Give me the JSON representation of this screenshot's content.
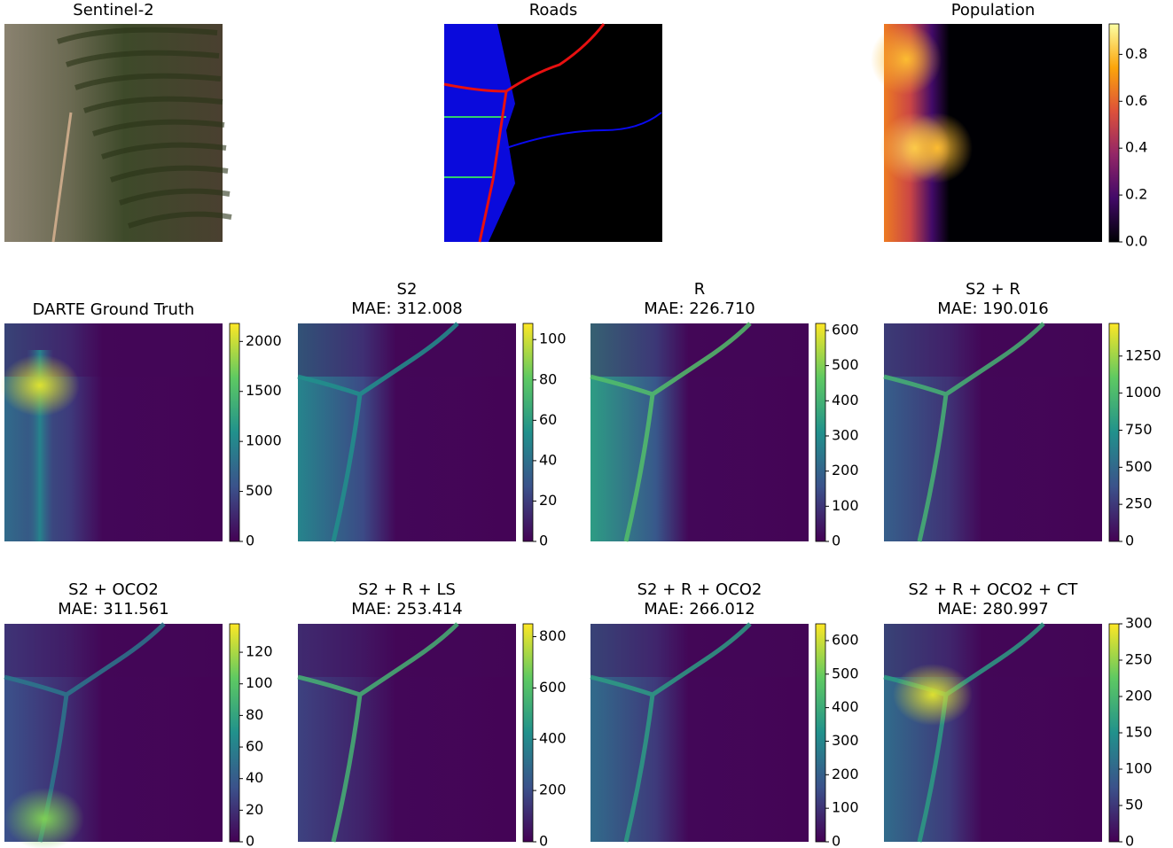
{
  "chart_data": [
    {
      "type": "image",
      "title": "Sentinel-2"
    },
    {
      "type": "image",
      "title": "Roads"
    },
    {
      "type": "image",
      "title": "Population",
      "colormap": "inferno",
      "clim": [
        0,
        0.93
      ],
      "cticks": [
        {
          "value": 0,
          "label": "0.0"
        },
        0.2,
        0.4,
        0.6,
        0.8
      ]
    },
    {
      "type": "image",
      "title": "DARTE Ground Truth",
      "colormap": "viridis",
      "clim": [
        0,
        2180
      ],
      "cticks": [
        0,
        500,
        1000,
        1500,
        2000
      ]
    },
    {
      "type": "image",
      "title": "S2",
      "subtitle": "MAE: 312.008",
      "colormap": "viridis",
      "clim": [
        0,
        108
      ],
      "cticks": [
        0,
        20,
        40,
        60,
        80,
        100
      ]
    },
    {
      "type": "image",
      "title": "R",
      "subtitle": "MAE: 226.710",
      "colormap": "viridis",
      "clim": [
        0,
        620
      ],
      "cticks": [
        0,
        100,
        200,
        300,
        400,
        500,
        600
      ]
    },
    {
      "type": "image",
      "title": "S2 + R",
      "subtitle": "MAE: 190.016",
      "colormap": "viridis",
      "clim": [
        0,
        1470
      ],
      "cticks": [
        0,
        250,
        500,
        750,
        1000,
        1250
      ]
    },
    {
      "type": "image",
      "title": "S2 + OCO2",
      "subtitle": "MAE: 311.561",
      "colormap": "viridis",
      "clim": [
        0,
        138
      ],
      "cticks": [
        0,
        20,
        40,
        60,
        80,
        100,
        120
      ]
    },
    {
      "type": "image",
      "title": "S2 + R + LS",
      "subtitle": "MAE: 253.414",
      "colormap": "viridis",
      "clim": [
        0,
        850
      ],
      "cticks": [
        0,
        200,
        400,
        600,
        800
      ]
    },
    {
      "type": "image",
      "title": "S2 + R + OCO2",
      "subtitle": "MAE: 266.012",
      "colormap": "viridis",
      "clim": [
        0,
        650
      ],
      "cticks": [
        0,
        100,
        200,
        300,
        400,
        500,
        600
      ]
    },
    {
      "type": "image",
      "title": "S2 + R + OCO2 + CT",
      "subtitle": "MAE: 280.997",
      "colormap": "viridis",
      "clim": [
        0,
        300
      ],
      "cticks": [
        0,
        50,
        100,
        150,
        200,
        250,
        300
      ]
    }
  ]
}
